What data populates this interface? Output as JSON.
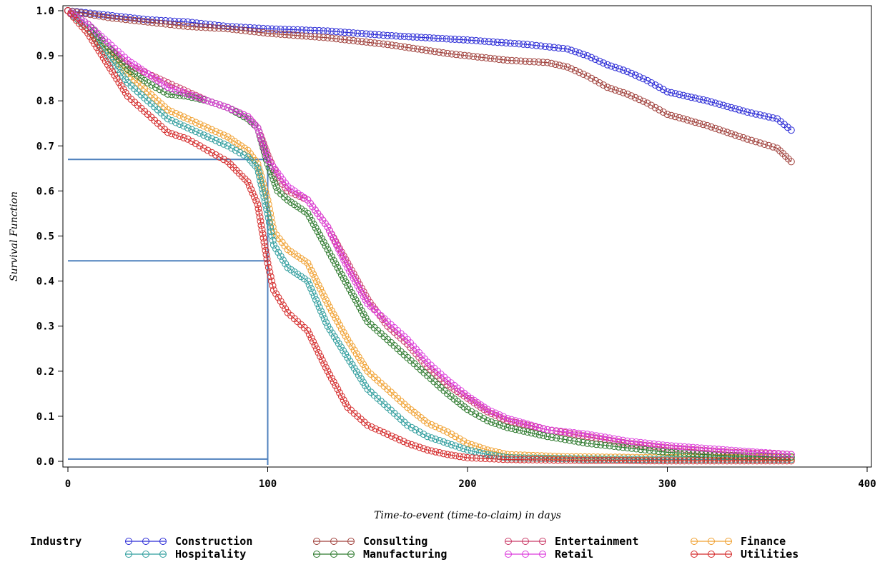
{
  "chart_data": {
    "type": "line",
    "title": "",
    "xlabel": "Time-to-event (time-to-claim) in days",
    "ylabel": "Survival Function",
    "xlim": [
      0,
      400
    ],
    "ylim": [
      0,
      1
    ],
    "x_ticks": [
      "0",
      "100",
      "200",
      "300",
      "400"
    ],
    "y_ticks": [
      "0.0",
      "0.1",
      "0.2",
      "0.3",
      "0.4",
      "0.5",
      "0.6",
      "0.7",
      "0.8",
      "0.9",
      "1.0"
    ],
    "grid": false,
    "legend_title": "Industry",
    "legend_position": "bottom",
    "reference_lines": {
      "horizontal_y": [
        0.67,
        0.445,
        0.005
      ],
      "vertical_x": [
        100
      ],
      "color": "#4f81bd"
    },
    "series": [
      {
        "name": "Construction",
        "color": "#2b2bd6",
        "points": [
          [
            0,
            1.0
          ],
          [
            20,
            0.99
          ],
          [
            40,
            0.98
          ],
          [
            60,
            0.975
          ],
          [
            80,
            0.965
          ],
          [
            100,
            0.96
          ],
          [
            130,
            0.955
          ],
          [
            160,
            0.945
          ],
          [
            200,
            0.935
          ],
          [
            230,
            0.925
          ],
          [
            250,
            0.915
          ],
          [
            260,
            0.9
          ],
          [
            270,
            0.88
          ],
          [
            280,
            0.865
          ],
          [
            290,
            0.845
          ],
          [
            300,
            0.82
          ],
          [
            320,
            0.8
          ],
          [
            340,
            0.775
          ],
          [
            355,
            0.76
          ],
          [
            362,
            0.735
          ]
        ]
      },
      {
        "name": "Consulting",
        "color": "#a0413c",
        "points": [
          [
            0,
            1.0
          ],
          [
            20,
            0.985
          ],
          [
            40,
            0.975
          ],
          [
            60,
            0.965
          ],
          [
            80,
            0.96
          ],
          [
            100,
            0.95
          ],
          [
            130,
            0.94
          ],
          [
            160,
            0.925
          ],
          [
            190,
            0.905
          ],
          [
            220,
            0.89
          ],
          [
            240,
            0.885
          ],
          [
            250,
            0.875
          ],
          [
            260,
            0.855
          ],
          [
            270,
            0.83
          ],
          [
            280,
            0.815
          ],
          [
            290,
            0.795
          ],
          [
            300,
            0.77
          ],
          [
            320,
            0.745
          ],
          [
            340,
            0.715
          ],
          [
            355,
            0.695
          ],
          [
            362,
            0.665
          ]
        ]
      },
      {
        "name": "Entertainment",
        "color": "#c93b67",
        "points": [
          [
            0,
            1.0
          ],
          [
            10,
            0.97
          ],
          [
            20,
            0.92
          ],
          [
            30,
            0.88
          ],
          [
            40,
            0.86
          ],
          [
            50,
            0.84
          ],
          [
            60,
            0.82
          ],
          [
            70,
            0.8
          ],
          [
            80,
            0.785
          ],
          [
            90,
            0.765
          ],
          [
            95,
            0.74
          ],
          [
            100,
            0.68
          ],
          [
            105,
            0.63
          ],
          [
            110,
            0.6
          ],
          [
            120,
            0.58
          ],
          [
            130,
            0.52
          ],
          [
            140,
            0.44
          ],
          [
            150,
            0.36
          ],
          [
            160,
            0.3
          ],
          [
            170,
            0.26
          ],
          [
            180,
            0.21
          ],
          [
            190,
            0.17
          ],
          [
            200,
            0.14
          ],
          [
            210,
            0.11
          ],
          [
            220,
            0.09
          ],
          [
            240,
            0.07
          ],
          [
            260,
            0.055
          ],
          [
            280,
            0.04
          ],
          [
            300,
            0.03
          ],
          [
            330,
            0.02
          ],
          [
            362,
            0.015
          ]
        ]
      },
      {
        "name": "Finance",
        "color": "#f0a030",
        "points": [
          [
            0,
            1.0
          ],
          [
            10,
            0.96
          ],
          [
            20,
            0.91
          ],
          [
            30,
            0.86
          ],
          [
            40,
            0.82
          ],
          [
            50,
            0.78
          ],
          [
            60,
            0.76
          ],
          [
            70,
            0.74
          ],
          [
            80,
            0.72
          ],
          [
            90,
            0.69
          ],
          [
            95,
            0.66
          ],
          [
            100,
            0.58
          ],
          [
            103,
            0.51
          ],
          [
            110,
            0.47
          ],
          [
            120,
            0.44
          ],
          [
            130,
            0.35
          ],
          [
            140,
            0.27
          ],
          [
            150,
            0.2
          ],
          [
            160,
            0.16
          ],
          [
            170,
            0.12
          ],
          [
            180,
            0.085
          ],
          [
            190,
            0.065
          ],
          [
            200,
            0.04
          ],
          [
            210,
            0.025
          ],
          [
            220,
            0.015
          ],
          [
            250,
            0.01
          ],
          [
            300,
            0.008
          ],
          [
            362,
            0.008
          ]
        ]
      },
      {
        "name": "Hospitality",
        "color": "#2f9d9d",
        "points": [
          [
            0,
            1.0
          ],
          [
            10,
            0.96
          ],
          [
            20,
            0.9
          ],
          [
            30,
            0.84
          ],
          [
            40,
            0.8
          ],
          [
            50,
            0.76
          ],
          [
            60,
            0.74
          ],
          [
            70,
            0.72
          ],
          [
            80,
            0.7
          ],
          [
            90,
            0.675
          ],
          [
            95,
            0.65
          ],
          [
            100,
            0.55
          ],
          [
            103,
            0.48
          ],
          [
            110,
            0.43
          ],
          [
            120,
            0.4
          ],
          [
            130,
            0.3
          ],
          [
            140,
            0.23
          ],
          [
            150,
            0.16
          ],
          [
            160,
            0.12
          ],
          [
            170,
            0.08
          ],
          [
            180,
            0.055
          ],
          [
            190,
            0.04
          ],
          [
            200,
            0.025
          ],
          [
            210,
            0.015
          ],
          [
            220,
            0.008
          ],
          [
            260,
            0.005
          ],
          [
            300,
            0.004
          ],
          [
            362,
            0.004
          ]
        ]
      },
      {
        "name": "Manufacturing",
        "color": "#2e7a2e",
        "points": [
          [
            0,
            1.0
          ],
          [
            10,
            0.97
          ],
          [
            20,
            0.92
          ],
          [
            30,
            0.87
          ],
          [
            40,
            0.84
          ],
          [
            50,
            0.815
          ],
          [
            60,
            0.81
          ],
          [
            70,
            0.8
          ],
          [
            80,
            0.785
          ],
          [
            90,
            0.76
          ],
          [
            95,
            0.74
          ],
          [
            100,
            0.66
          ],
          [
            105,
            0.6
          ],
          [
            110,
            0.58
          ],
          [
            120,
            0.55
          ],
          [
            130,
            0.47
          ],
          [
            140,
            0.39
          ],
          [
            150,
            0.31
          ],
          [
            160,
            0.27
          ],
          [
            170,
            0.23
          ],
          [
            180,
            0.19
          ],
          [
            190,
            0.15
          ],
          [
            200,
            0.115
          ],
          [
            210,
            0.09
          ],
          [
            220,
            0.075
          ],
          [
            240,
            0.055
          ],
          [
            260,
            0.04
          ],
          [
            280,
            0.03
          ],
          [
            300,
            0.02
          ],
          [
            330,
            0.012
          ],
          [
            362,
            0.01
          ]
        ]
      },
      {
        "name": "Retail",
        "color": "#dc3cdc",
        "points": [
          [
            0,
            1.0
          ],
          [
            10,
            0.97
          ],
          [
            20,
            0.93
          ],
          [
            30,
            0.89
          ],
          [
            40,
            0.86
          ],
          [
            50,
            0.83
          ],
          [
            60,
            0.815
          ],
          [
            70,
            0.8
          ],
          [
            80,
            0.785
          ],
          [
            90,
            0.765
          ],
          [
            95,
            0.74
          ],
          [
            100,
            0.67
          ],
          [
            105,
            0.64
          ],
          [
            110,
            0.61
          ],
          [
            120,
            0.58
          ],
          [
            130,
            0.52
          ],
          [
            140,
            0.43
          ],
          [
            150,
            0.35
          ],
          [
            160,
            0.31
          ],
          [
            170,
            0.27
          ],
          [
            180,
            0.22
          ],
          [
            190,
            0.18
          ],
          [
            200,
            0.145
          ],
          [
            210,
            0.115
          ],
          [
            220,
            0.095
          ],
          [
            240,
            0.07
          ],
          [
            260,
            0.06
          ],
          [
            280,
            0.045
          ],
          [
            300,
            0.035
          ],
          [
            330,
            0.025
          ],
          [
            362,
            0.015
          ]
        ]
      },
      {
        "name": "Utilities",
        "color": "#d42a2a",
        "points": [
          [
            0,
            1.0
          ],
          [
            10,
            0.95
          ],
          [
            20,
            0.88
          ],
          [
            30,
            0.81
          ],
          [
            40,
            0.77
          ],
          [
            50,
            0.73
          ],
          [
            60,
            0.715
          ],
          [
            70,
            0.69
          ],
          [
            80,
            0.665
          ],
          [
            90,
            0.62
          ],
          [
            95,
            0.57
          ],
          [
            100,
            0.44
          ],
          [
            103,
            0.38
          ],
          [
            110,
            0.33
          ],
          [
            120,
            0.29
          ],
          [
            130,
            0.2
          ],
          [
            140,
            0.12
          ],
          [
            150,
            0.08
          ],
          [
            160,
            0.06
          ],
          [
            170,
            0.04
          ],
          [
            180,
            0.025
          ],
          [
            190,
            0.015
          ],
          [
            200,
            0.008
          ],
          [
            220,
            0.004
          ],
          [
            260,
            0.002
          ],
          [
            300,
            0.001
          ],
          [
            362,
            0.001
          ]
        ]
      }
    ]
  }
}
